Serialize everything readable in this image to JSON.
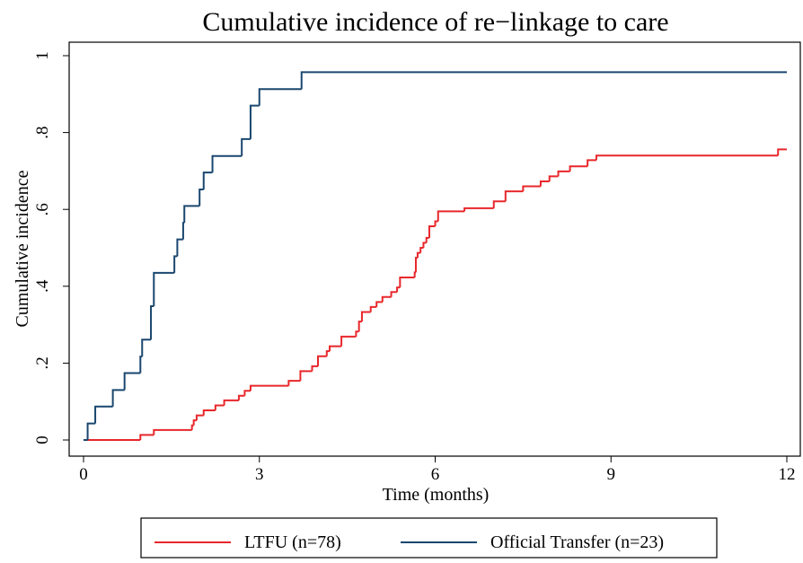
{
  "chart_data": {
    "type": "step",
    "title": "Cumulative incidence of re−linkage to care",
    "x_label": "Time (months)",
    "y_label": "Cumulative incidence",
    "xlim": [
      0,
      12
    ],
    "ylim": [
      0,
      1
    ],
    "xticks": [
      0,
      3,
      6,
      9,
      12
    ],
    "yticks": [
      0,
      {
        "value": 0.2,
        "label": ".2"
      },
      {
        "value": 0.4,
        "label": ".4"
      },
      {
        "value": 0.6,
        "label": ".6"
      },
      {
        "value": 0.8,
        "label": ".8"
      },
      1
    ],
    "series": [
      {
        "name": "LTFU (n=78)",
        "color": "#e8272b",
        "x": [
          0,
          0.97,
          1.2,
          1.85,
          1.88,
          1.93,
          2.05,
          2.25,
          2.4,
          2.65,
          2.75,
          2.85,
          3.5,
          3.7,
          3.9,
          4.0,
          4.15,
          4.2,
          4.4,
          4.65,
          4.7,
          4.75,
          4.9,
          5.0,
          5.1,
          5.25,
          5.35,
          5.4,
          5.65,
          5.67,
          5.7,
          5.75,
          5.8,
          5.85,
          5.9,
          6.0,
          6.05,
          6.5,
          7.0,
          7.2,
          7.5,
          7.8,
          7.95,
          8.1,
          8.3,
          8.6,
          8.75,
          11.85,
          12
        ],
        "values": [
          0,
          0.013,
          0.026,
          0.038,
          0.051,
          0.064,
          0.077,
          0.09,
          0.103,
          0.115,
          0.128,
          0.141,
          0.154,
          0.179,
          0.192,
          0.218,
          0.231,
          0.244,
          0.269,
          0.282,
          0.308,
          0.333,
          0.346,
          0.359,
          0.372,
          0.385,
          0.397,
          0.423,
          0.436,
          0.474,
          0.487,
          0.5,
          0.513,
          0.526,
          0.556,
          0.569,
          0.595,
          0.603,
          0.621,
          0.647,
          0.66,
          0.673,
          0.686,
          0.699,
          0.712,
          0.728,
          0.74,
          0.756,
          0.756
        ]
      },
      {
        "name": "Official Transfer (n=23)",
        "color": "#1a476f",
        "x": [
          0,
          0.07,
          0.2,
          0.5,
          0.7,
          0.97,
          1.0,
          1.15,
          1.2,
          1.55,
          1.6,
          1.7,
          1.72,
          1.98,
          2.05,
          2.2,
          2.7,
          2.85,
          3.0,
          3.72,
          12
        ],
        "values": [
          0,
          0.043,
          0.087,
          0.13,
          0.174,
          0.217,
          0.261,
          0.348,
          0.435,
          0.478,
          0.522,
          0.565,
          0.609,
          0.652,
          0.696,
          0.739,
          0.783,
          0.87,
          0.913,
          0.957,
          0.957
        ]
      }
    ]
  }
}
